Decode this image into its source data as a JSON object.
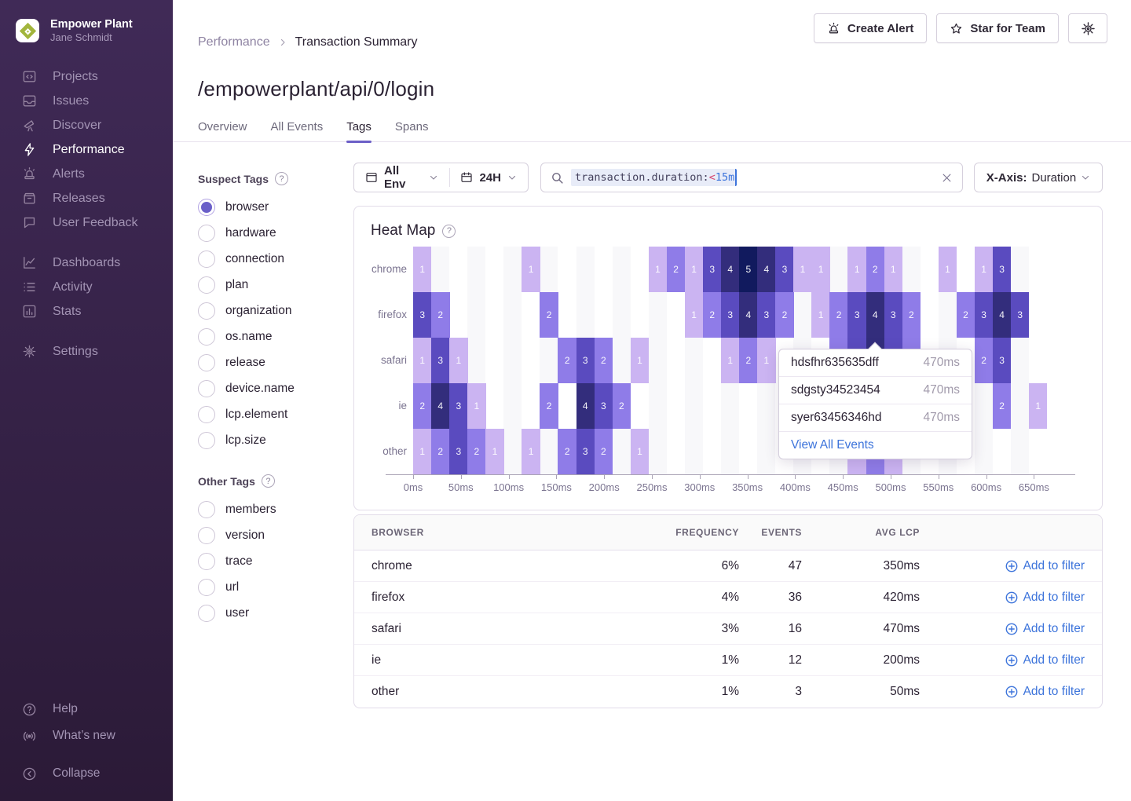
{
  "colors": {
    "accent": "#6C5FC7",
    "link": "#3D74DB",
    "heat_1": "#cbb4f2",
    "heat_2": "#8f7ce8",
    "heat_3": "#5a4bbf",
    "heat_4": "#332d7c",
    "heat_5": "#111a5e"
  },
  "sidebar": {
    "org": "Empower Plant",
    "user": "Jane Schmidt",
    "items": [
      {
        "label": "Projects",
        "icon": "projects-icon",
        "active": false
      },
      {
        "label": "Issues",
        "icon": "issues-icon",
        "active": false
      },
      {
        "label": "Discover",
        "icon": "discover-icon",
        "active": false
      },
      {
        "label": "Performance",
        "icon": "performance-icon",
        "active": true
      },
      {
        "label": "Alerts",
        "icon": "alerts-icon",
        "active": false
      },
      {
        "label": "Releases",
        "icon": "releases-icon",
        "active": false
      },
      {
        "label": "User Feedback",
        "icon": "feedback-icon",
        "active": false
      },
      {
        "label": "Dashboards",
        "icon": "dashboards-icon",
        "active": false,
        "gap_before": true
      },
      {
        "label": "Activity",
        "icon": "activity-icon",
        "active": false
      },
      {
        "label": "Stats",
        "icon": "stats-icon",
        "active": false
      },
      {
        "label": "Settings",
        "icon": "settings-icon",
        "active": false,
        "gap_before": true
      }
    ],
    "footer": [
      {
        "label": "Help",
        "icon": "help-icon"
      },
      {
        "label": "What’s new",
        "icon": "whatsnew-icon"
      },
      {
        "label": "Collapse",
        "icon": "collapse-icon",
        "gap_before": true
      }
    ]
  },
  "header": {
    "breadcrumb": {
      "parent": "Performance",
      "current": "Transaction Summary"
    },
    "title": "/empowerplant/api/0/login",
    "tabs": [
      "Overview",
      "All Events",
      "Tags",
      "Spans"
    ],
    "active_tab": "Tags",
    "actions": {
      "create_alert": "Create Alert",
      "star": "Star for Team"
    }
  },
  "filters": {
    "env_label": "All Env",
    "period_label": "24H",
    "search_token": {
      "key": "transaction.duration:",
      "op": "<",
      "value": "15m"
    },
    "xaxis_label": "X-Axis:",
    "xaxis_value": "Duration"
  },
  "tags_panel": {
    "suspect_title": "Suspect Tags",
    "suspect_items": [
      "browser",
      "hardware",
      "connection",
      "plan",
      "organization",
      "os.name",
      "release",
      "device.name",
      "lcp.element",
      "lcp.size"
    ],
    "selected": "browser",
    "other_title": "Other Tags",
    "other_items": [
      "members",
      "version",
      "trace",
      "url",
      "user"
    ]
  },
  "chart_data": {
    "type": "heatmap",
    "title": "Heat Map",
    "xlabel": "",
    "ylabel": "",
    "x_ticks": [
      "0ms",
      "50ms",
      "100ms",
      "150ms",
      "200ms",
      "250ms",
      "300ms",
      "350ms",
      "400ms",
      "450ms",
      "500ms",
      "550ms",
      "600ms",
      "650ms"
    ],
    "bucket_ms": 19,
    "n_cols": 35,
    "rows": [
      "chrome",
      "firefox",
      "safari",
      "ie",
      "other"
    ],
    "cells": {
      "chrome": [
        [
          0,
          1
        ],
        [
          6,
          1
        ],
        [
          13,
          1
        ],
        [
          14,
          2
        ],
        [
          15,
          1
        ],
        [
          16,
          3
        ],
        [
          17,
          4
        ],
        [
          18,
          5
        ],
        [
          19,
          4
        ],
        [
          20,
          3
        ],
        [
          21,
          1
        ],
        [
          22,
          1
        ],
        [
          24,
          1
        ],
        [
          25,
          2
        ],
        [
          26,
          1
        ],
        [
          29,
          1
        ],
        [
          31,
          1
        ],
        [
          32,
          3
        ]
      ],
      "firefox": [
        [
          0,
          3
        ],
        [
          1,
          2
        ],
        [
          7,
          2
        ],
        [
          15,
          1
        ],
        [
          16,
          2
        ],
        [
          17,
          3
        ],
        [
          18,
          4
        ],
        [
          19,
          3
        ],
        [
          20,
          2
        ],
        [
          22,
          1
        ],
        [
          23,
          2
        ],
        [
          24,
          3
        ],
        [
          25,
          4
        ],
        [
          26,
          3
        ],
        [
          27,
          2
        ],
        [
          30,
          2
        ],
        [
          31,
          3
        ],
        [
          32,
          4
        ],
        [
          33,
          3
        ]
      ],
      "safari": [
        [
          0,
          1
        ],
        [
          1,
          3
        ],
        [
          2,
          1
        ],
        [
          8,
          2
        ],
        [
          9,
          3
        ],
        [
          10,
          2
        ],
        [
          12,
          1
        ],
        [
          17,
          1
        ],
        [
          18,
          2
        ],
        [
          19,
          1
        ],
        [
          23,
          2
        ],
        [
          24,
          3
        ],
        [
          25,
          4
        ],
        [
          26,
          3
        ],
        [
          27,
          2
        ],
        [
          31,
          2
        ],
        [
          32,
          3
        ]
      ],
      "ie": [
        [
          0,
          2
        ],
        [
          1,
          4
        ],
        [
          2,
          3
        ],
        [
          3,
          1
        ],
        [
          7,
          2
        ],
        [
          9,
          4
        ],
        [
          10,
          3
        ],
        [
          11,
          2
        ],
        [
          32,
          2
        ],
        [
          34,
          1
        ]
      ],
      "other": [
        [
          0,
          1
        ],
        [
          1,
          2
        ],
        [
          2,
          3
        ],
        [
          3,
          2
        ],
        [
          4,
          1
        ],
        [
          6,
          1
        ],
        [
          8,
          2
        ],
        [
          9,
          3
        ],
        [
          10,
          2
        ],
        [
          12,
          1
        ],
        [
          24,
          1
        ],
        [
          25,
          2
        ],
        [
          26,
          1
        ]
      ]
    },
    "value_colors": {
      "1": "#cbb4f2",
      "2": "#8f7ce8",
      "3": "#5a4bbf",
      "4": "#332d7c",
      "5": "#111a5e"
    },
    "grid": "striped-columns",
    "legend_position": "none"
  },
  "tooltip": {
    "events": [
      {
        "id": "hdsfhr635635dff",
        "duration": "470ms"
      },
      {
        "id": "sdgsty34523454",
        "duration": "470ms"
      },
      {
        "id": "syer63456346hd",
        "duration": "470ms"
      }
    ],
    "link": "View All Events"
  },
  "table": {
    "columns": [
      "BROWSER",
      "FREQUENCY",
      "EVENTS",
      "AVG LCP"
    ],
    "rows": [
      {
        "browser": "chrome",
        "frequency": "6%",
        "events": "47",
        "avg_lcp": "350ms",
        "action": "Add to filter"
      },
      {
        "browser": "firefox",
        "frequency": "4%",
        "events": "36",
        "avg_lcp": "420ms",
        "action": "Add to filter"
      },
      {
        "browser": "safari",
        "frequency": "3%",
        "events": "16",
        "avg_lcp": "470ms",
        "action": "Add to filter"
      },
      {
        "browser": "ie",
        "frequency": "1%",
        "events": "12",
        "avg_lcp": "200ms",
        "action": "Add to filter"
      },
      {
        "browser": "other",
        "frequency": "1%",
        "events": "3",
        "avg_lcp": "50ms",
        "action": "Add to filter"
      }
    ]
  }
}
